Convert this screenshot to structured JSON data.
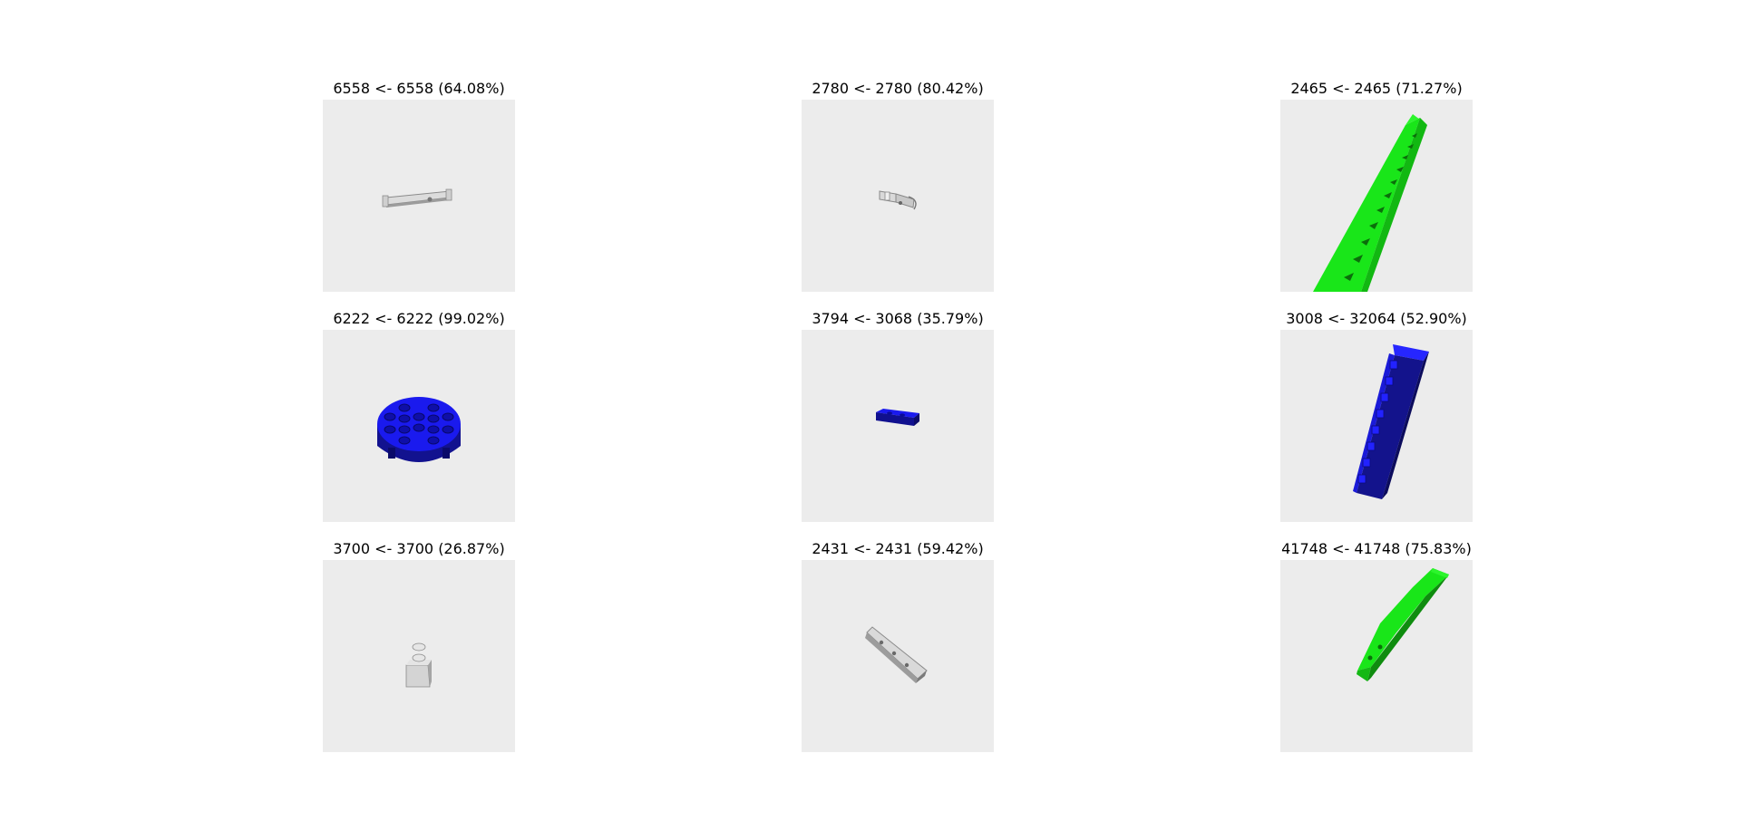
{
  "figure": {
    "panels": [
      {
        "title": "6558 <- 6558 (64.08%)",
        "true_part": "6558",
        "predicted_part": "6558",
        "confidence_percent": 64.08,
        "part_color": "#d8d8d8",
        "icon": "technic-pin-long-render"
      },
      {
        "title": "2780 <- 2780 (80.42%)",
        "true_part": "2780",
        "predicted_part": "2780",
        "confidence_percent": 80.42,
        "part_color": "#d8d8d8",
        "icon": "technic-pin-render"
      },
      {
        "title": "2465 <- 2465 (71.27%)",
        "true_part": "2465",
        "predicted_part": "2465",
        "confidence_percent": 71.27,
        "part_color": "#19e619",
        "icon": "long-brick-render"
      },
      {
        "title": "6222 <- 6222 (99.02%)",
        "true_part": "6222",
        "predicted_part": "6222",
        "confidence_percent": 99.02,
        "part_color": "#1a1aee",
        "icon": "round-brick-render"
      },
      {
        "title": "3794 <- 3068 (35.79%)",
        "true_part": "3794",
        "predicted_part": "3068",
        "confidence_percent": 35.79,
        "part_color": "#1a1aee",
        "icon": "small-plate-render"
      },
      {
        "title": "3008 <- 32064 (52.90%)",
        "true_part": "3008",
        "predicted_part": "32064",
        "confidence_percent": 52.9,
        "part_color": "#1a1aee",
        "icon": "brick-1x8-render"
      },
      {
        "title": "3700 <- 3700 (26.87%)",
        "true_part": "3700",
        "predicted_part": "3700",
        "confidence_percent": 26.87,
        "part_color": "#d8d8d8",
        "icon": "technic-brick-render"
      },
      {
        "title": "2431 <- 2431 (59.42%)",
        "true_part": "2431",
        "predicted_part": "2431",
        "confidence_percent": 59.42,
        "part_color": "#d8d8d8",
        "icon": "tile-render"
      },
      {
        "title": "41748 <- 41748 (75.83%)",
        "true_part": "41748",
        "predicted_part": "41748",
        "confidence_percent": 75.83,
        "part_color": "#19e619",
        "icon": "wedge-plate-render"
      }
    ]
  }
}
